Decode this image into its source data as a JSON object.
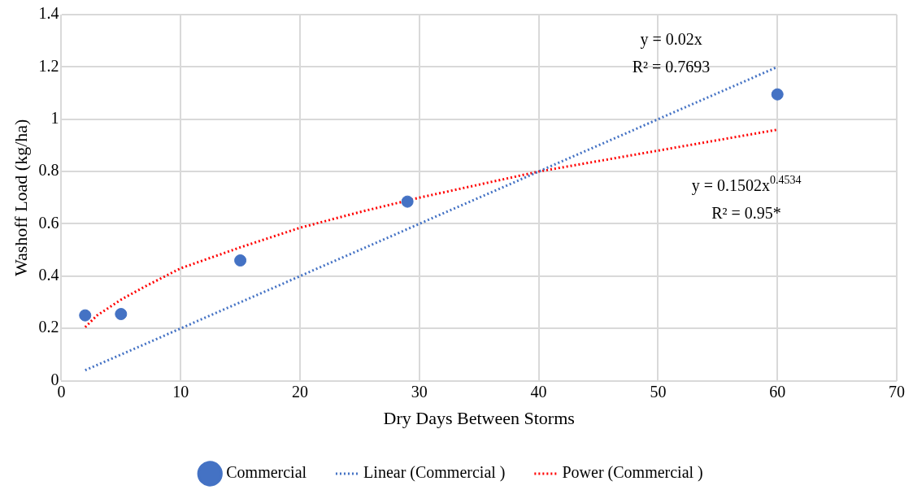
{
  "chart_data": {
    "type": "scatter",
    "xlabel": "Dry Days Between Storms",
    "ylabel": "Washoff Load (kg/ha)",
    "xlim": [
      0,
      70
    ],
    "xticks": [
      0,
      10,
      20,
      30,
      40,
      50,
      60,
      70
    ],
    "ylim": [
      0,
      1.4
    ],
    "yticks": [
      0,
      0.2,
      0.4,
      0.6,
      0.8,
      1,
      1.2,
      1.4
    ],
    "grid": true,
    "legend": "bottom",
    "series": [
      {
        "name": "Commercial",
        "type": "scatter",
        "color": "#4472c4",
        "marker": "circle",
        "x": [
          2,
          5,
          15,
          29,
          60
        ],
        "values": [
          0.25,
          0.255,
          0.46,
          0.685,
          1.095
        ]
      },
      {
        "name": "Linear (Commercial )",
        "type": "line",
        "color": "#4472c4",
        "marker": "none",
        "line_style": "dotted",
        "x": [
          2,
          60
        ],
        "values": [
          0.04,
          1.2
        ]
      },
      {
        "name": "Power (Commercial )",
        "type": "line",
        "color": "#ff0000",
        "marker": "none",
        "line_style": "dotted",
        "x": [
          2,
          3,
          5,
          7,
          10,
          15,
          20,
          25,
          30,
          35,
          40,
          45,
          50,
          55,
          60
        ],
        "values": [
          0.205,
          0.25,
          0.31,
          0.36,
          0.43,
          0.51,
          0.585,
          0.645,
          0.7,
          0.75,
          0.8,
          0.84,
          0.88,
          0.92,
          0.96
        ]
      }
    ],
    "annotations": [
      "y = 0.02x",
      "R² = 0.7693",
      "y = 0.1502x$^{0.4534}$",
      "R² = 0.95*"
    ]
  }
}
